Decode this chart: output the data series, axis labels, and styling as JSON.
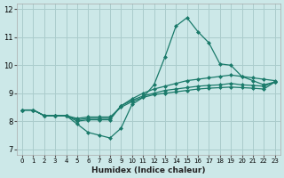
{
  "xlabel": "Humidex (Indice chaleur)",
  "background_color": "#cce8e8",
  "grid_color": "#aacccc",
  "line_color": "#1a7a6a",
  "xlim": [
    -0.5,
    23.5
  ],
  "ylim": [
    6.8,
    12.2
  ],
  "yticks": [
    7,
    8,
    9,
    10,
    11,
    12
  ],
  "xticks": [
    0,
    1,
    2,
    3,
    4,
    5,
    6,
    7,
    8,
    9,
    10,
    11,
    12,
    13,
    14,
    15,
    16,
    17,
    18,
    19,
    20,
    21,
    22,
    23
  ],
  "series": [
    [
      8.4,
      8.4,
      8.2,
      8.2,
      8.2,
      7.9,
      7.6,
      7.5,
      7.4,
      7.75,
      8.6,
      8.85,
      9.3,
      10.3,
      11.4,
      11.7,
      11.2,
      10.8,
      10.05,
      10.0,
      9.6,
      9.45,
      9.3,
      9.4
    ],
    [
      8.4,
      8.4,
      8.2,
      8.2,
      8.2,
      8.0,
      8.05,
      8.05,
      8.05,
      8.55,
      8.8,
      9.0,
      9.15,
      9.25,
      9.35,
      9.45,
      9.5,
      9.55,
      9.6,
      9.65,
      9.6,
      9.55,
      9.5,
      9.45
    ],
    [
      8.4,
      8.4,
      8.2,
      8.2,
      8.2,
      8.05,
      8.1,
      8.1,
      8.1,
      8.55,
      8.75,
      8.9,
      9.0,
      9.1,
      9.15,
      9.2,
      9.25,
      9.28,
      9.3,
      9.35,
      9.3,
      9.28,
      9.25,
      9.4
    ],
    [
      8.4,
      8.4,
      8.2,
      8.2,
      8.2,
      8.1,
      8.15,
      8.15,
      8.15,
      8.5,
      8.7,
      8.85,
      8.95,
      9.0,
      9.05,
      9.1,
      9.15,
      9.18,
      9.2,
      9.22,
      9.2,
      9.18,
      9.15,
      9.4
    ]
  ]
}
